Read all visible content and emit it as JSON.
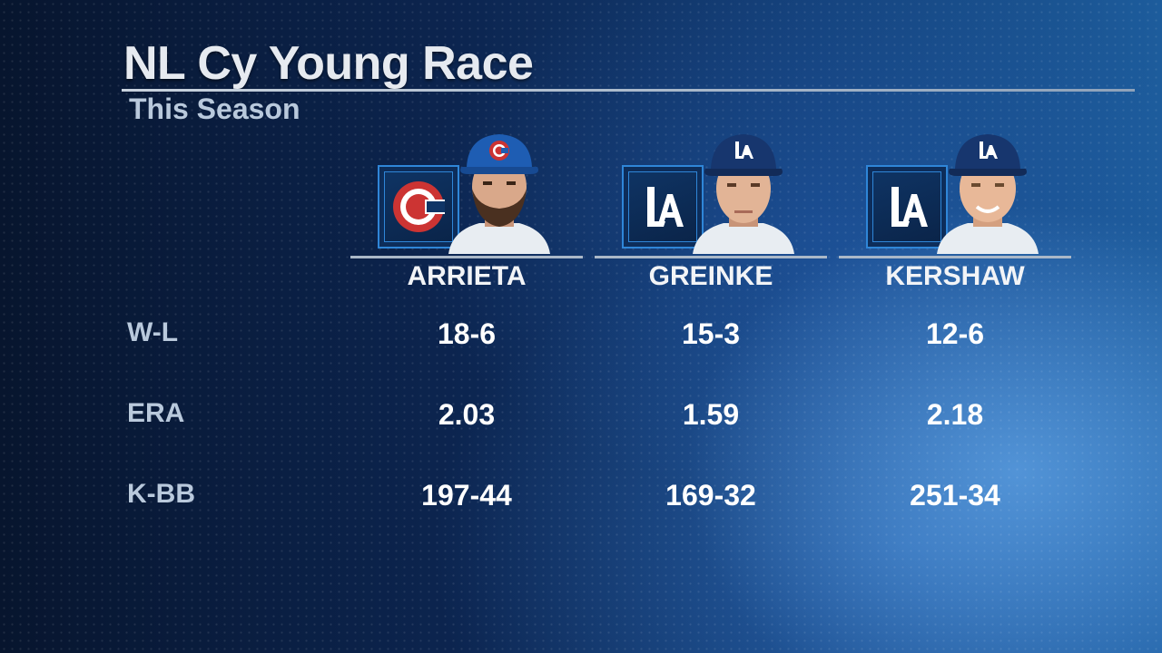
{
  "header": {
    "title": "NL Cy Young Race",
    "subtitle": "This Season"
  },
  "players": [
    {
      "name": "ARRIETA",
      "team_logo": "cubs-logo",
      "team_color": "#0e3386",
      "accent_color": "#cc3433"
    },
    {
      "name": "GREINKE",
      "team_logo": "dodgers-logo",
      "team_color": "#005a9c",
      "accent_color": "#ffffff"
    },
    {
      "name": "KERSHAW",
      "team_logo": "dodgers-logo",
      "team_color": "#005a9c",
      "accent_color": "#ffffff"
    }
  ],
  "stats": [
    {
      "label": "W-L",
      "values": [
        "18-6",
        "15-3",
        "12-6"
      ]
    },
    {
      "label": "ERA",
      "values": [
        "2.03",
        "1.59",
        "2.18"
      ]
    },
    {
      "label": "K-BB",
      "values": [
        "197-44",
        "169-32",
        "251-34"
      ]
    }
  ],
  "icons": {
    "cubs_logo_letter": "C",
    "dodgers_logo_letters": "LA"
  }
}
